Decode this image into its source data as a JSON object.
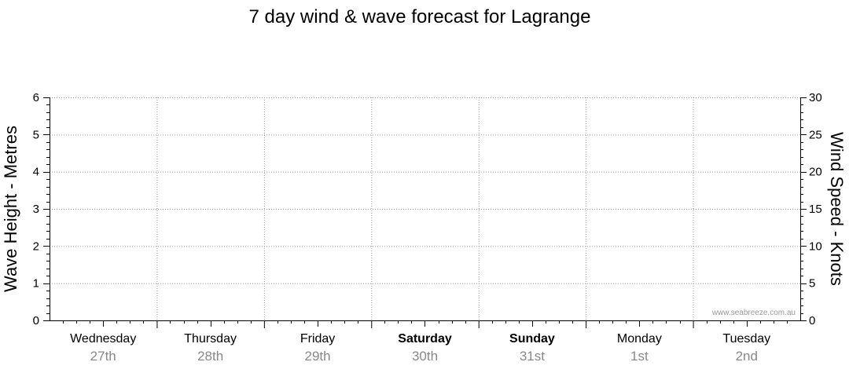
{
  "chart_data": {
    "type": "line",
    "title": "7 day wind & wave forecast for Lagrange",
    "y_left": {
      "label": "Wave Height - Metres",
      "range": [
        0,
        6
      ],
      "ticks": [
        0,
        1,
        2,
        3,
        4,
        5,
        6
      ]
    },
    "y_right": {
      "label": "Wind Speed - Knots",
      "range": [
        0,
        30
      ],
      "ticks": [
        0,
        5,
        10,
        15,
        20,
        25,
        30
      ]
    },
    "days": [
      {
        "day": "Wednesday",
        "date": "27th",
        "bold": false
      },
      {
        "day": "Thursday",
        "date": "28th",
        "bold": false
      },
      {
        "day": "Friday",
        "date": "29th",
        "bold": false
      },
      {
        "day": "Saturday",
        "date": "30th",
        "bold": true
      },
      {
        "day": "Sunday",
        "date": "31st",
        "bold": true
      },
      {
        "day": "Monday",
        "date": "1st",
        "bold": false
      },
      {
        "day": "Tuesday",
        "date": "2nd",
        "bold": false
      }
    ],
    "series": [],
    "grid": true,
    "watermark": "www.seabreeze.com.au"
  }
}
